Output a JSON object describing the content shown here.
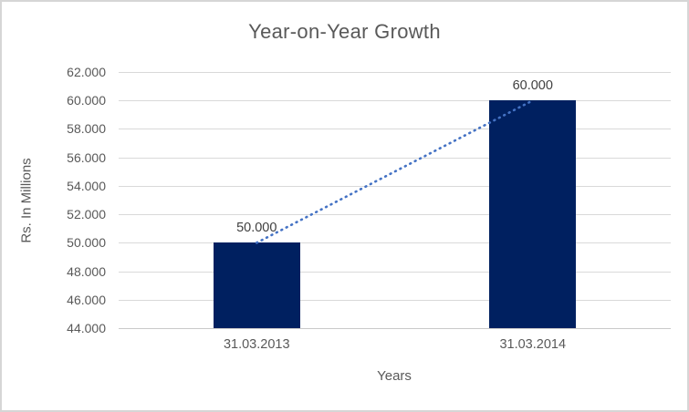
{
  "chart": {
    "title": "Year-on-Year Growth",
    "y_axis_title": "Rs. In Millions",
    "x_axis_title": "Years"
  },
  "chart_data": {
    "type": "bar",
    "title": "Year-on-Year Growth",
    "xlabel": "Years",
    "ylabel": "Rs. In Millions",
    "categories": [
      "31.03.2013",
      "31.03.2014"
    ],
    "values": [
      50000,
      60000
    ],
    "data_labels": [
      "50.000",
      "60.000"
    ],
    "y_ticks": [
      {
        "value": 62000,
        "label": "62.000"
      },
      {
        "value": 60000,
        "label": "60.000"
      },
      {
        "value": 58000,
        "label": "58.000"
      },
      {
        "value": 56000,
        "label": "56.000"
      },
      {
        "value": 54000,
        "label": "54.000"
      },
      {
        "value": 52000,
        "label": "52.000"
      },
      {
        "value": 50000,
        "label": "50.000"
      },
      {
        "value": 48000,
        "label": "48.000"
      },
      {
        "value": 46000,
        "label": "46.000"
      },
      {
        "value": 44000,
        "label": "44.000"
      }
    ],
    "ylim": [
      44000,
      62000
    ],
    "grid": true,
    "legend": "none",
    "trendline": {
      "style": "dotted",
      "from_value": 50000,
      "to_value": 60000
    },
    "colors": {
      "bar": "#002060",
      "trendline": "#4472C4",
      "axis_text": "#595959",
      "data_label_text": "#404040",
      "gridline": "#d9d9d9",
      "axis_line": "#c9c9c9",
      "border": "#d6d6d6",
      "background": "#ffffff"
    }
  }
}
